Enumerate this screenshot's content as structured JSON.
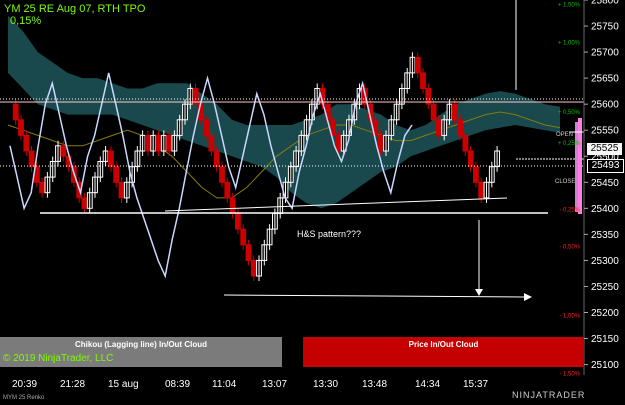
{
  "header": {
    "title": "YM 25 RE Aug 07, RTH TPO",
    "change": "0,15%"
  },
  "annotation": "H&S pattern???",
  "panels": {
    "left_label": "Chikou (Lagging line) In/Out Cloud",
    "right_label": "Price In/Out Cloud"
  },
  "copyright": "© 2019 NinjaTrader, LLC",
  "footer_instrument": "MYM 25 Renko",
  "brand": "NINJATRADER",
  "tpo_labels": {
    "open": "OPEN",
    "close": "CLOSE"
  },
  "price_boxes": {
    "upper": "25525",
    "lower": "25493"
  },
  "colors": {
    "background": "#000000",
    "bull": "#ffffff",
    "bear": "#cc0000",
    "cloud": "#1a4d50",
    "lagging": "#c8d8ff",
    "price_up": "#00c000",
    "price_down": "#ff2020",
    "left_panel": "#7b7b7b",
    "right_panel": "#c40000"
  },
  "chart_data": {
    "type": "line",
    "ylim": [
      25080,
      25800
    ],
    "yticks": [
      25800,
      25750,
      25700,
      25650,
      25600,
      25550,
      25500,
      25450,
      25400,
      25350,
      25300,
      25250,
      25200,
      25150,
      25100
    ],
    "percent_ticks": [
      {
        "label": "+ 1,50%",
        "value": 25791
      },
      {
        "label": "+ 1,00%",
        "value": 25718
      },
      {
        "label": "+ 0,50%",
        "value": 25585
      },
      {
        "label": "+ 0,25%",
        "value": 25525
      },
      {
        "label": "- 0,25%",
        "value": 25398
      },
      {
        "label": "- 0,50%",
        "value": 25327
      },
      {
        "label": "- 1,00%",
        "value": 25194
      },
      {
        "label": "- 1,50%",
        "value": 25083
      }
    ],
    "xlabels": [
      "20:39",
      "21:28",
      "15 aug",
      "08:39",
      "11:04",
      "13:07",
      "13:30",
      "13:48",
      "14:34",
      "15:37"
    ],
    "renko_closes": [
      25600,
      25570,
      25540,
      25510,
      25480,
      25450,
      25430,
      25460,
      25490,
      25520,
      25500,
      25480,
      25450,
      25420,
      25400,
      25430,
      25460,
      25490,
      25510,
      25480,
      25450,
      25420,
      25450,
      25480,
      25510,
      25540,
      25510,
      25540,
      25510,
      25540,
      25510,
      25540,
      25570,
      25600,
      25630,
      25600,
      25570,
      25540,
      25510,
      25480,
      25450,
      25420,
      25390,
      25360,
      25330,
      25300,
      25270,
      25300,
      25330,
      25360,
      25390,
      25420,
      25450,
      25480,
      25510,
      25540,
      25570,
      25600,
      25630,
      25600,
      25570,
      25540,
      25510,
      25540,
      25570,
      25600,
      25630,
      25600,
      25570,
      25540,
      25510,
      25540,
      25570,
      25600,
      25630,
      25660,
      25690,
      25660,
      25630,
      25600,
      25570,
      25540,
      25570,
      25600,
      25570,
      25540,
      25510,
      25480,
      25450,
      25420,
      25450,
      25480,
      25510
    ],
    "lagging_line": [
      25520,
      25460,
      25400,
      25430,
      25520,
      25600,
      25640,
      25580,
      25520,
      25470,
      25430,
      25500,
      25540,
      25600,
      25660,
      25600,
      25540,
      25470,
      25420,
      25380,
      25340,
      25300,
      25270,
      25340,
      25400,
      25470,
      25540,
      25600,
      25650,
      25600,
      25540,
      25480,
      25440,
      25500,
      25560,
      25620,
      25580,
      25520,
      25470,
      25420,
      25400,
      25470,
      25520,
      25580,
      25620,
      25570,
      25520,
      25490,
      25530,
      25600,
      25640,
      25580,
      25520,
      25470,
      25430,
      25490,
      25540,
      25560
    ],
    "cloud_top": [
      25770,
      25740,
      25700,
      25680,
      25660,
      25650,
      25650,
      25640,
      25630,
      25630,
      25640,
      25640,
      25640,
      25620,
      25600,
      25570,
      25560,
      25560,
      25560,
      25560,
      25570,
      25580,
      25600,
      25600,
      25590,
      25580,
      25560,
      25550,
      25560,
      25580,
      25600,
      25610,
      25620,
      25625,
      25620,
      25610,
      25600,
      25595
    ],
    "cloud_bottom": [
      25660,
      25630,
      25600,
      25590,
      25580,
      25580,
      25580,
      25580,
      25570,
      25560,
      25550,
      25540,
      25530,
      25520,
      25510,
      25500,
      25490,
      25480,
      25460,
      25430,
      25410,
      25400,
      25410,
      25430,
      25450,
      25470,
      25480,
      25500,
      25510,
      25520,
      25530,
      25540,
      25550,
      25555,
      25560,
      25555,
      25550,
      25545
    ],
    "conversion_line": [
      25560,
      25550,
      25540,
      25530,
      25520,
      25520,
      25530,
      25540,
      25550,
      25540,
      25520,
      25500,
      25470,
      25440,
      25420,
      25420,
      25440,
      25470,
      25500,
      25520,
      25540,
      25550,
      25560,
      25560,
      25550,
      25540,
      25530,
      25530,
      25540,
      25550,
      25560,
      25570,
      25580,
      25585,
      25580,
      25570,
      25560,
      25555
    ]
  }
}
